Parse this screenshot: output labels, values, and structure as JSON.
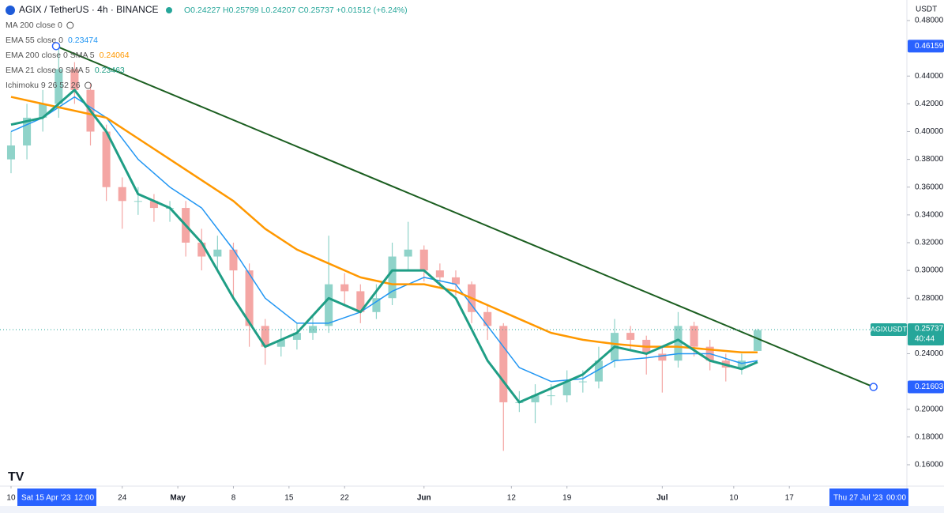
{
  "chart_data": {
    "type": "candlestick",
    "title": "AGIX / TetherUS · 4h · BINANCE",
    "ohlc_text": "O0.24227 H0.25799 L0.24207 C0.25737 +0.01512 (+6.24%)",
    "currency": "USDT",
    "ylim": [
      0.1446,
      0.4948
    ],
    "yticks": [
      {
        "value": 0.16,
        "label": "0.16000"
      },
      {
        "value": 0.18,
        "label": "0.18000"
      },
      {
        "value": 0.2,
        "label": "0.20000"
      },
      {
        "value": 0.24,
        "label": "0.24000"
      },
      {
        "value": 0.28,
        "label": "0.28000"
      },
      {
        "value": 0.3,
        "label": "0.30000"
      },
      {
        "value": 0.32,
        "label": "0.32000"
      },
      {
        "value": 0.34,
        "label": "0.34000"
      },
      {
        "value": 0.36,
        "label": "0.36000"
      },
      {
        "value": 0.38,
        "label": "0.38000"
      },
      {
        "value": 0.4,
        "label": "0.40000"
      },
      {
        "value": 0.42,
        "label": "0.42000"
      },
      {
        "value": 0.44,
        "label": "0.44000"
      },
      {
        "value": 0.48,
        "label": "0.48000"
      }
    ],
    "xlim": [
      -1.39,
      112.8
    ],
    "xticks": [
      {
        "value": 0,
        "label": "10"
      },
      {
        "value": 14,
        "label": "24"
      },
      {
        "value": 21,
        "label": "May"
      },
      {
        "value": 28,
        "label": "8"
      },
      {
        "value": 35,
        "label": "15"
      },
      {
        "value": 42,
        "label": "22"
      },
      {
        "value": 52,
        "label": "Jun"
      },
      {
        "value": 63,
        "label": "12"
      },
      {
        "value": 70,
        "label": "19"
      },
      {
        "value": 82,
        "label": "Jul"
      },
      {
        "value": 91,
        "label": "10"
      },
      {
        "value": 98,
        "label": "17"
      }
    ],
    "up_color": "#8fd3c9",
    "down_color": "#f4a6a4",
    "candles": [
      [
        0,
        0.38,
        0.4,
        0.37,
        0.39
      ],
      [
        2,
        0.39,
        0.42,
        0.38,
        0.41
      ],
      [
        4,
        0.41,
        0.43,
        0.4,
        0.42
      ],
      [
        6,
        0.42,
        0.46,
        0.41,
        0.445
      ],
      [
        8,
        0.445,
        0.45,
        0.42,
        0.43
      ],
      [
        10,
        0.43,
        0.435,
        0.39,
        0.4
      ],
      [
        12,
        0.4,
        0.405,
        0.35,
        0.36
      ],
      [
        14,
        0.36,
        0.367,
        0.33,
        0.35
      ],
      [
        16,
        0.35,
        0.36,
        0.34,
        0.35
      ],
      [
        18,
        0.35,
        0.355,
        0.335,
        0.345
      ],
      [
        20,
        0.345,
        0.35,
        0.335,
        0.345
      ],
      [
        22,
        0.345,
        0.35,
        0.31,
        0.32
      ],
      [
        24,
        0.32,
        0.33,
        0.3,
        0.31
      ],
      [
        26,
        0.31,
        0.325,
        0.3,
        0.315
      ],
      [
        28,
        0.315,
        0.32,
        0.28,
        0.3
      ],
      [
        30,
        0.3,
        0.305,
        0.245,
        0.26
      ],
      [
        32,
        0.26,
        0.265,
        0.232,
        0.245
      ],
      [
        34,
        0.245,
        0.258,
        0.238,
        0.25
      ],
      [
        36,
        0.25,
        0.262,
        0.243,
        0.255
      ],
      [
        38,
        0.255,
        0.268,
        0.25,
        0.26
      ],
      [
        40,
        0.26,
        0.325,
        0.255,
        0.29
      ],
      [
        42,
        0.29,
        0.298,
        0.275,
        0.285
      ],
      [
        44,
        0.285,
        0.29,
        0.262,
        0.27
      ],
      [
        46,
        0.27,
        0.29,
        0.265,
        0.28
      ],
      [
        48,
        0.28,
        0.32,
        0.275,
        0.31
      ],
      [
        50,
        0.31,
        0.335,
        0.3,
        0.315
      ],
      [
        52,
        0.315,
        0.318,
        0.292,
        0.3
      ],
      [
        54,
        0.3,
        0.305,
        0.287,
        0.295
      ],
      [
        56,
        0.295,
        0.3,
        0.282,
        0.29
      ],
      [
        58,
        0.29,
        0.292,
        0.262,
        0.27
      ],
      [
        60,
        0.27,
        0.275,
        0.25,
        0.26
      ],
      [
        62,
        0.26,
        0.262,
        0.17,
        0.205
      ],
      [
        64,
        0.205,
        0.213,
        0.198,
        0.205
      ],
      [
        66,
        0.205,
        0.218,
        0.19,
        0.21
      ],
      [
        68,
        0.21,
        0.218,
        0.203,
        0.21
      ],
      [
        70,
        0.21,
        0.228,
        0.205,
        0.22
      ],
      [
        72,
        0.22,
        0.228,
        0.212,
        0.22
      ],
      [
        74,
        0.22,
        0.245,
        0.215,
        0.235
      ],
      [
        76,
        0.235,
        0.265,
        0.23,
        0.255
      ],
      [
        78,
        0.255,
        0.26,
        0.243,
        0.25
      ],
      [
        80,
        0.25,
        0.253,
        0.225,
        0.24
      ],
      [
        82,
        0.24,
        0.245,
        0.212,
        0.235
      ],
      [
        84,
        0.235,
        0.27,
        0.23,
        0.26
      ],
      [
        86,
        0.26,
        0.263,
        0.238,
        0.245
      ],
      [
        88,
        0.245,
        0.25,
        0.228,
        0.235
      ],
      [
        90,
        0.235,
        0.24,
        0.22,
        0.23
      ],
      [
        92,
        0.23,
        0.24,
        0.225,
        0.235
      ],
      [
        94,
        0.242,
        0.258,
        0.242,
        0.257
      ]
    ],
    "line_x": [
      0,
      4,
      8,
      12,
      16,
      20,
      24,
      28,
      32,
      36,
      40,
      44,
      48,
      52,
      56,
      60,
      64,
      68,
      72,
      76,
      80,
      84,
      88,
      92,
      94
    ],
    "indicators": [
      {
        "label": "MA 200 close 0"
      },
      {
        "label": "EMA 55 close 0",
        "value": 0.23474,
        "color": "#2196f3",
        "width": 1.5,
        "values": [
          0.4,
          0.41,
          0.425,
          0.41,
          0.38,
          0.36,
          0.345,
          0.315,
          0.28,
          0.262,
          0.262,
          0.27,
          0.285,
          0.295,
          0.29,
          0.26,
          0.23,
          0.22,
          0.222,
          0.235,
          0.237,
          0.24,
          0.24,
          0.233,
          0.235
        ]
      },
      {
        "label": "EMA 200 close 0 SMA 5",
        "value": 0.24064,
        "color": "#ff9800",
        "width": 2.5,
        "values": [
          0.425,
          0.42,
          0.415,
          0.41,
          0.395,
          0.38,
          0.365,
          0.35,
          0.33,
          0.315,
          0.305,
          0.295,
          0.29,
          0.29,
          0.285,
          0.275,
          0.265,
          0.255,
          0.25,
          0.247,
          0.245,
          0.245,
          0.243,
          0.241,
          0.241
        ]
      },
      {
        "label": "EMA 21 close 0 SMA 5",
        "value": 0.23463,
        "color": "#1f9e85",
        "width": 3,
        "values": [
          0.405,
          0.41,
          0.43,
          0.4,
          0.355,
          0.345,
          0.32,
          0.28,
          0.245,
          0.255,
          0.28,
          0.27,
          0.3,
          0.3,
          0.28,
          0.235,
          0.205,
          0.215,
          0.225,
          0.245,
          0.24,
          0.25,
          0.235,
          0.229,
          0.234
        ]
      },
      {
        "label": "Ichimoku 9 26 52 26"
      }
    ],
    "trendline": {
      "color": "#1b5e20",
      "x": [
        5.67,
        108.6
      ],
      "values": [
        0.46159,
        0.21603
      ]
    },
    "last": {
      "symbol": "AGIXUSDT",
      "price": 0.25737,
      "countdown": "40:44",
      "color": "#26a69a"
    },
    "crosshair": {
      "date": "Sat 15 Apr '23",
      "time": "12:00"
    },
    "range_end": {
      "date": "Thu 27 Jul '23",
      "time": "00:00"
    }
  }
}
